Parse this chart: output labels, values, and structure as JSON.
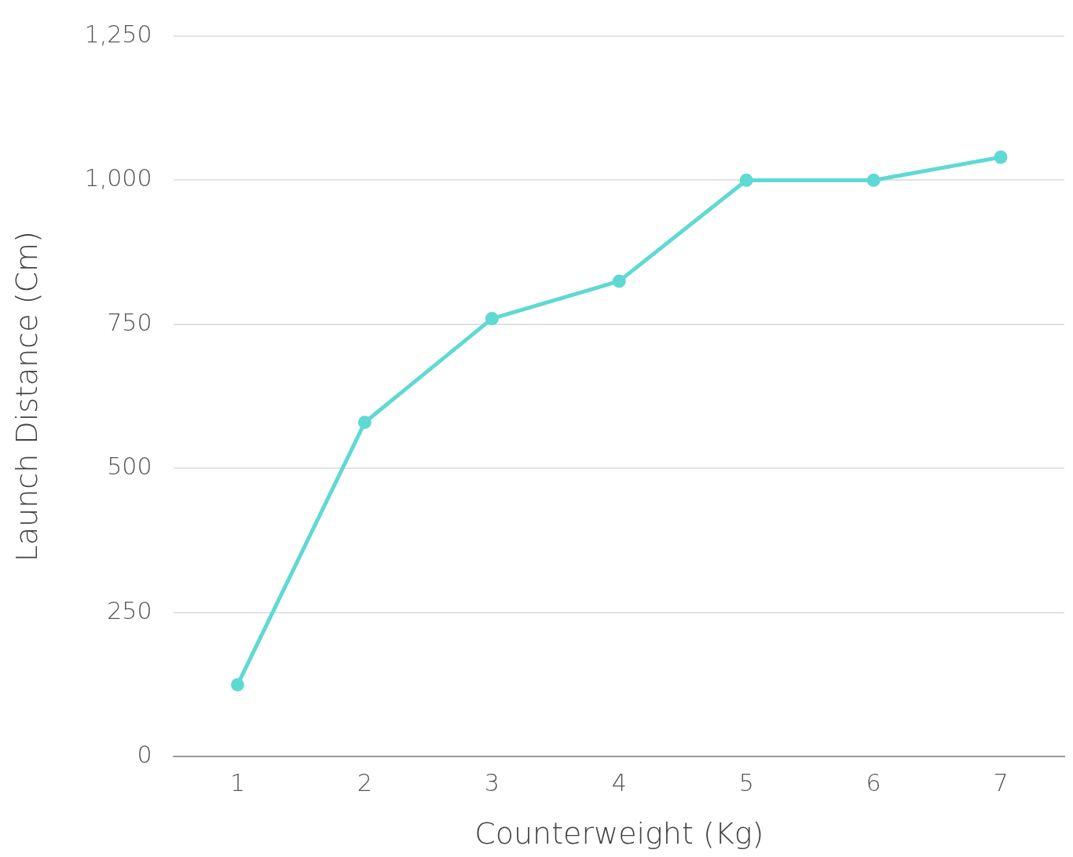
{
  "chart_data": {
    "type": "line",
    "xlabel": "Counterweight (Kg)",
    "ylabel": "Launch Distance (Cm)",
    "categories": [
      "1",
      "2",
      "3",
      "4",
      "5",
      "6",
      "7"
    ],
    "series": [
      {
        "color": "#5fd9d3",
        "values": [
          125,
          580,
          760,
          825,
          1000,
          1000,
          1040
        ]
      }
    ],
    "ylim": [
      0,
      1250
    ],
    "yticks": [
      0,
      250,
      500,
      750,
      {
        "value": 1000,
        "label": "1,000"
      },
      {
        "value": 1250,
        "label": "1,250"
      }
    ],
    "grid": "y",
    "legend": false,
    "marker": "circle",
    "line_style": "solid"
  }
}
